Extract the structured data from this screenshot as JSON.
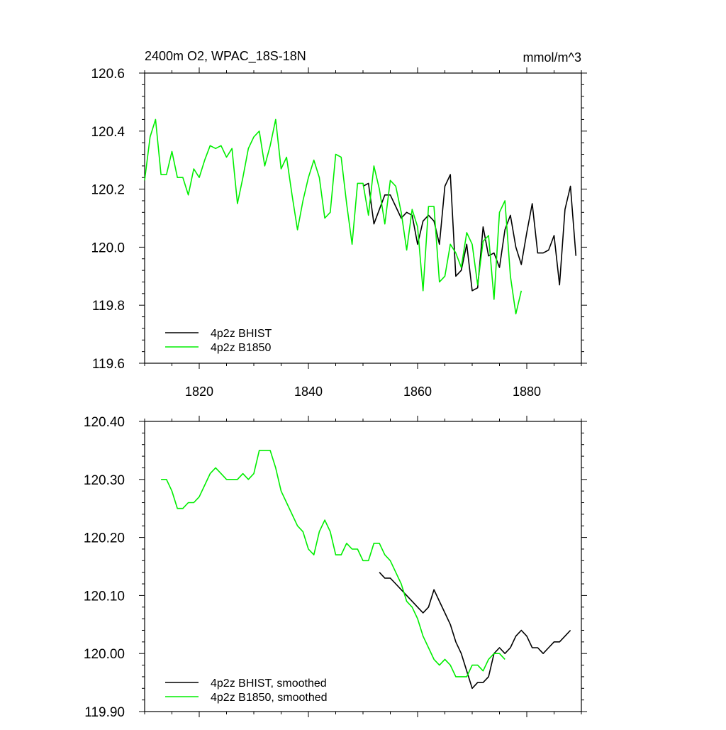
{
  "header": {
    "title": "2400m O2, WPAC_18S-18N",
    "units": "mmol/m^3"
  },
  "colors": {
    "bhist": "#000000",
    "b1850": "#00ee00"
  },
  "chart_data": [
    {
      "type": "line",
      "name": "top-panel",
      "title": "2400m O2, WPAC_18S-18N",
      "ylabel": "mmol/m^3",
      "xlim": [
        1810,
        1890
      ],
      "ylim": [
        119.6,
        120.6
      ],
      "xticks": [
        1820,
        1840,
        1860,
        1880
      ],
      "xtick_labels": [
        "1820",
        "1840",
        "1860",
        "1880"
      ],
      "yticks": [
        119.6,
        119.8,
        120.0,
        120.2,
        120.4,
        120.6
      ],
      "ytick_labels": [
        "119.6",
        "119.8",
        "120.0",
        "120.2",
        "120.4",
        "120.6"
      ],
      "legend": [
        "4p2z BHIST",
        "4p2z B1850"
      ],
      "legend_position": "bottom-left",
      "series": [
        {
          "name": "4p2z BHIST",
          "color": "#000000",
          "x": [
            1850,
            1851,
            1852,
            1853,
            1854,
            1855,
            1856,
            1857,
            1858,
            1859,
            1860,
            1861,
            1862,
            1863,
            1864,
            1865,
            1866,
            1867,
            1868,
            1869,
            1870,
            1871,
            1872,
            1873,
            1874,
            1875,
            1876,
            1877,
            1878,
            1879,
            1880,
            1881,
            1882,
            1883,
            1884,
            1885,
            1886,
            1887,
            1888,
            1889
          ],
          "values": [
            120.21,
            120.22,
            120.08,
            120.13,
            120.18,
            120.18,
            120.14,
            120.1,
            120.12,
            120.11,
            120.01,
            120.09,
            120.11,
            120.09,
            120.01,
            120.21,
            120.25,
            119.9,
            119.92,
            120.01,
            119.85,
            119.86,
            120.07,
            119.97,
            119.98,
            119.93,
            120.06,
            120.11,
            120.0,
            119.94,
            120.05,
            120.15,
            119.98,
            119.98,
            119.99,
            120.04,
            119.87,
            120.13,
            120.21,
            119.97
          ]
        },
        {
          "name": "4p2z B1850",
          "color": "#00ee00",
          "x": [
            1810,
            1811,
            1812,
            1813,
            1814,
            1815,
            1816,
            1817,
            1818,
            1819,
            1820,
            1821,
            1822,
            1823,
            1824,
            1825,
            1826,
            1827,
            1828,
            1829,
            1830,
            1831,
            1832,
            1833,
            1834,
            1835,
            1836,
            1837,
            1838,
            1839,
            1840,
            1841,
            1842,
            1843,
            1844,
            1845,
            1846,
            1847,
            1848,
            1849,
            1850,
            1851,
            1852,
            1853,
            1854,
            1855,
            1856,
            1857,
            1858,
            1859,
            1860,
            1861,
            1862,
            1863,
            1864,
            1865,
            1866,
            1867,
            1868,
            1869,
            1870,
            1871,
            1872,
            1873,
            1874,
            1875,
            1876,
            1877,
            1878,
            1879
          ],
          "values": [
            120.23,
            120.38,
            120.44,
            120.25,
            120.25,
            120.33,
            120.24,
            120.24,
            120.18,
            120.27,
            120.24,
            120.3,
            120.35,
            120.34,
            120.35,
            120.31,
            120.34,
            120.15,
            120.24,
            120.34,
            120.38,
            120.4,
            120.28,
            120.35,
            120.44,
            120.27,
            120.31,
            120.18,
            120.06,
            120.16,
            120.24,
            120.3,
            120.24,
            120.1,
            120.12,
            120.32,
            120.31,
            120.15,
            120.01,
            120.22,
            120.22,
            120.11,
            120.28,
            120.2,
            120.08,
            120.23,
            120.21,
            120.12,
            119.99,
            120.13,
            120.07,
            119.85,
            120.14,
            120.14,
            119.88,
            119.9,
            120.01,
            119.98,
            119.93,
            120.05,
            120.01,
            119.87,
            120.02,
            120.04,
            119.82,
            120.12,
            120.16,
            119.9,
            119.77,
            119.85
          ]
        }
      ]
    },
    {
      "type": "line",
      "name": "bottom-panel",
      "xlim": [
        1810,
        1890
      ],
      "ylim": [
        119.9,
        120.4
      ],
      "yticks": [
        119.9,
        120.0,
        120.1,
        120.2,
        120.3,
        120.4
      ],
      "ytick_labels": [
        "119.90",
        "120.00",
        "120.10",
        "120.20",
        "120.30",
        "120.40"
      ],
      "legend": [
        "4p2z BHIST, smoothed",
        "4p2z B1850, smoothed"
      ],
      "legend_position": "bottom-left",
      "series": [
        {
          "name": "4p2z BHIST, smoothed",
          "color": "#000000",
          "x": [
            1853,
            1854,
            1855,
            1856,
            1857,
            1858,
            1859,
            1860,
            1861,
            1862,
            1863,
            1864,
            1865,
            1866,
            1867,
            1868,
            1869,
            1870,
            1871,
            1872,
            1873,
            1874,
            1875,
            1876,
            1877,
            1878,
            1879,
            1880,
            1881,
            1882,
            1883,
            1884,
            1885,
            1886,
            1887,
            1888
          ],
          "values": [
            120.14,
            120.13,
            120.13,
            120.12,
            120.11,
            120.1,
            120.09,
            120.08,
            120.07,
            120.08,
            120.11,
            120.09,
            120.07,
            120.05,
            120.02,
            120.0,
            119.97,
            119.94,
            119.95,
            119.95,
            119.96,
            120.0,
            120.01,
            120.0,
            120.01,
            120.03,
            120.04,
            120.03,
            120.01,
            120.01,
            120.0,
            120.01,
            120.02,
            120.02,
            120.03,
            120.04
          ]
        },
        {
          "name": "4p2z B1850, smoothed",
          "color": "#00ee00",
          "x": [
            1813,
            1814,
            1815,
            1816,
            1817,
            1818,
            1819,
            1820,
            1821,
            1822,
            1823,
            1824,
            1825,
            1826,
            1827,
            1828,
            1829,
            1830,
            1831,
            1832,
            1833,
            1834,
            1835,
            1836,
            1837,
            1838,
            1839,
            1840,
            1841,
            1842,
            1843,
            1844,
            1845,
            1846,
            1847,
            1848,
            1849,
            1850,
            1851,
            1852,
            1853,
            1854,
            1855,
            1856,
            1857,
            1858,
            1859,
            1860,
            1861,
            1862,
            1863,
            1864,
            1865,
            1866,
            1867,
            1868,
            1869,
            1870,
            1871,
            1872,
            1873,
            1874,
            1875,
            1876
          ],
          "values": [
            120.3,
            120.3,
            120.28,
            120.25,
            120.25,
            120.26,
            120.26,
            120.27,
            120.29,
            120.31,
            120.32,
            120.31,
            120.3,
            120.3,
            120.3,
            120.31,
            120.3,
            120.31,
            120.35,
            120.35,
            120.35,
            120.32,
            120.28,
            120.26,
            120.24,
            120.22,
            120.21,
            120.18,
            120.17,
            120.21,
            120.23,
            120.21,
            120.17,
            120.17,
            120.19,
            120.18,
            120.18,
            120.16,
            120.16,
            120.19,
            120.19,
            120.17,
            120.16,
            120.14,
            120.12,
            120.09,
            120.08,
            120.06,
            120.03,
            120.01,
            119.99,
            119.98,
            119.99,
            119.98,
            119.96,
            119.96,
            119.96,
            119.98,
            119.98,
            119.97,
            119.99,
            120.0,
            120.0,
            119.99
          ]
        }
      ]
    }
  ]
}
